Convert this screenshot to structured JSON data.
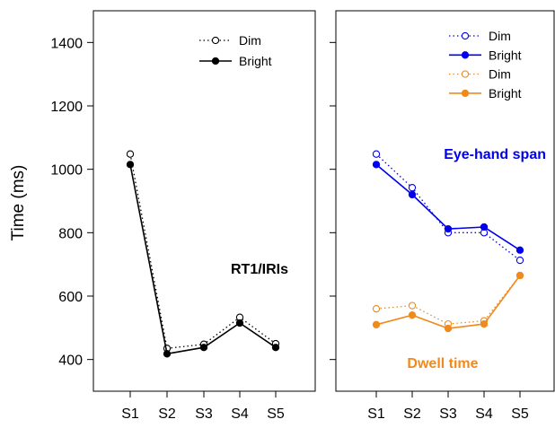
{
  "chart_data": [
    {
      "type": "line",
      "ylabel": "Time (ms)",
      "ylim": [
        300,
        1500
      ],
      "yticks": [
        400,
        600,
        800,
        1000,
        1200,
        1400
      ],
      "categories": [
        "S1",
        "S2",
        "S3",
        "S4",
        "S5"
      ],
      "annotation": "RT1/IRIs",
      "legend_position": "top-right",
      "series": [
        {
          "name": "Dim",
          "color": "#000000",
          "style": "dotted",
          "marker": "open-circle",
          "values": [
            1048,
            435,
            448,
            533,
            450
          ]
        },
        {
          "name": "Bright",
          "color": "#000000",
          "style": "solid",
          "marker": "filled-circle",
          "values": [
            1015,
            418,
            438,
            515,
            438
          ]
        }
      ]
    },
    {
      "type": "line",
      "ylim": [
        300,
        1500
      ],
      "categories": [
        "S1",
        "S2",
        "S3",
        "S4",
        "S5"
      ],
      "legend_position": "top-right",
      "series": [
        {
          "name": "Dim",
          "group": "Eye-hand span",
          "color": "#0000ee",
          "style": "dotted",
          "marker": "open-circle",
          "values": [
            1048,
            942,
            800,
            800,
            713
          ]
        },
        {
          "name": "Bright",
          "group": "Eye-hand span",
          "color": "#0000ee",
          "style": "solid",
          "marker": "filled-circle",
          "values": [
            1015,
            920,
            812,
            818,
            745
          ]
        },
        {
          "name": "Dim",
          "group": "Dwell time",
          "color": "#f08a1c",
          "style": "dotted",
          "marker": "open-circle",
          "values": [
            560,
            570,
            512,
            522,
            665
          ]
        },
        {
          "name": "Bright",
          "group": "Dwell time",
          "color": "#f08a1c",
          "style": "solid",
          "marker": "filled-circle",
          "values": [
            510,
            540,
            498,
            512,
            665
          ]
        }
      ],
      "annotations": [
        {
          "text": "Eye-hand span",
          "color": "#0000ee"
        },
        {
          "text": "Dwell time",
          "color": "#f08a1c"
        }
      ]
    }
  ]
}
